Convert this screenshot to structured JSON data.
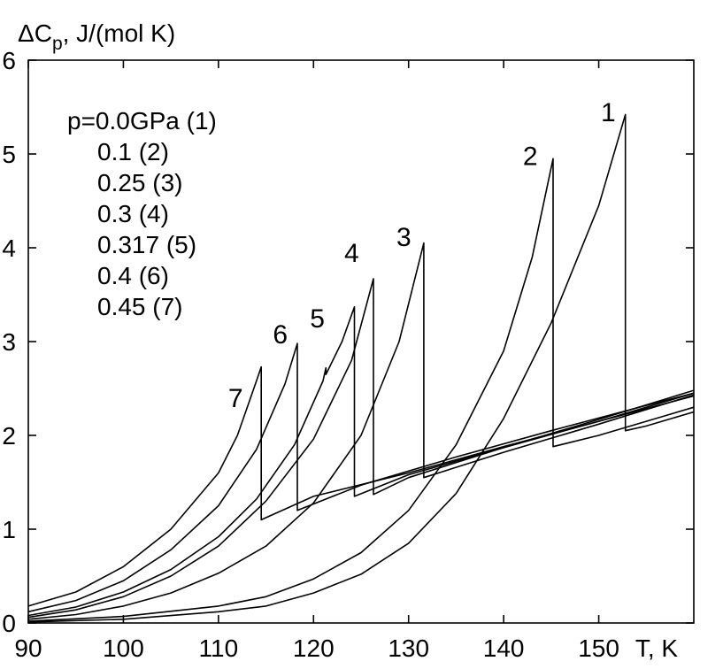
{
  "chart_data": {
    "type": "line",
    "title": "",
    "ylabel": "ΔC",
    "ylabel_sub": "p",
    "ylabel_units": ", J/(mol K)",
    "xlabel": "T, K",
    "xlim": [
      90,
      160
    ],
    "ylim": [
      0,
      6
    ],
    "xticks": [
      90,
      100,
      110,
      120,
      130,
      140,
      150
    ],
    "yticks": [
      0,
      1,
      2,
      3,
      4,
      5,
      6
    ],
    "grid": false,
    "legend": {
      "placement": "top-left",
      "entries": [
        "p=0.0GPa (1)",
        "0.1 (2)",
        "0.25 (3)",
        "0.3 (4)",
        "0.317 (5)",
        "0.4 (6)",
        "0.45 (7)"
      ]
    },
    "series": [
      {
        "name": "7",
        "pressure": "0.45 GPa",
        "x": [
          90,
          95,
          100,
          105,
          110,
          112,
          114,
          114.5,
          114.5,
          120,
          130,
          140,
          150,
          160
        ],
        "y": [
          0.18,
          0.33,
          0.6,
          1.0,
          1.6,
          2.0,
          2.58,
          2.73,
          1.1,
          1.35,
          1.6,
          1.88,
          2.15,
          2.42
        ],
        "label_at": [
          111.8,
          2.3
        ]
      },
      {
        "name": "6",
        "pressure": "0.4 GPa",
        "x": [
          90,
          95,
          100,
          105,
          110,
          114,
          117,
          118.3,
          118.3,
          125,
          135,
          145,
          155,
          160
        ],
        "y": [
          0.12,
          0.24,
          0.45,
          0.78,
          1.25,
          1.85,
          2.55,
          2.98,
          1.2,
          1.47,
          1.77,
          2.05,
          2.32,
          2.45
        ],
        "label_at": [
          116.5,
          2.98
        ]
      },
      {
        "name": "5",
        "pressure": "0.317 GPa",
        "x": [
          90,
          95,
          100,
          105,
          110,
          114,
          118,
          121,
          121.3,
          121.3,
          123,
          124.3,
          124.3,
          130,
          140,
          150,
          160
        ],
        "y": [
          0.08,
          0.17,
          0.33,
          0.57,
          0.92,
          1.32,
          1.9,
          2.58,
          2.72,
          2.65,
          3.0,
          3.37,
          1.35,
          1.58,
          1.87,
          2.15,
          2.45
        ],
        "label_at": [
          120.4,
          3.15
        ]
      },
      {
        "name": "4",
        "pressure": "0.3 GPa",
        "x": [
          90,
          95,
          100,
          105,
          110,
          115,
          120,
          124,
          126.3,
          126.3,
          130,
          140,
          150,
          160
        ],
        "y": [
          0.06,
          0.14,
          0.28,
          0.5,
          0.82,
          1.3,
          1.96,
          2.8,
          3.67,
          1.37,
          1.55,
          1.87,
          2.17,
          2.48
        ],
        "label_at": [
          124.0,
          3.85
        ]
      },
      {
        "name": "3",
        "pressure": "0.25 GPa",
        "x": [
          90,
          95,
          100,
          105,
          110,
          115,
          120,
          125,
          129,
          131.6,
          131.6,
          140,
          150,
          160
        ],
        "y": [
          0.04,
          0.09,
          0.18,
          0.32,
          0.53,
          0.82,
          1.28,
          2.0,
          3.0,
          4.05,
          1.55,
          1.82,
          2.12,
          2.43
        ],
        "label_at": [
          129.5,
          4.02
        ]
      },
      {
        "name": "2",
        "pressure": "0.1 GPa",
        "x": [
          90,
          100,
          110,
          115,
          120,
          125,
          130,
          135,
          140,
          143,
          145.2,
          145.2,
          150,
          155,
          160
        ],
        "y": [
          0.02,
          0.07,
          0.18,
          0.28,
          0.47,
          0.75,
          1.2,
          1.9,
          2.9,
          3.9,
          4.95,
          1.88,
          2.0,
          2.15,
          2.3
        ],
        "label_at": [
          142.8,
          4.88
        ]
      },
      {
        "name": "1",
        "pressure": "0.0 GPa",
        "x": [
          90,
          100,
          110,
          115,
          120,
          125,
          130,
          135,
          140,
          145,
          150,
          152.8,
          152.8,
          155,
          160
        ],
        "y": [
          0.01,
          0.04,
          0.12,
          0.18,
          0.32,
          0.52,
          0.85,
          1.38,
          2.18,
          3.2,
          4.45,
          5.42,
          2.05,
          2.1,
          2.25
        ],
        "label_at": [
          151.0,
          5.35
        ]
      }
    ]
  }
}
